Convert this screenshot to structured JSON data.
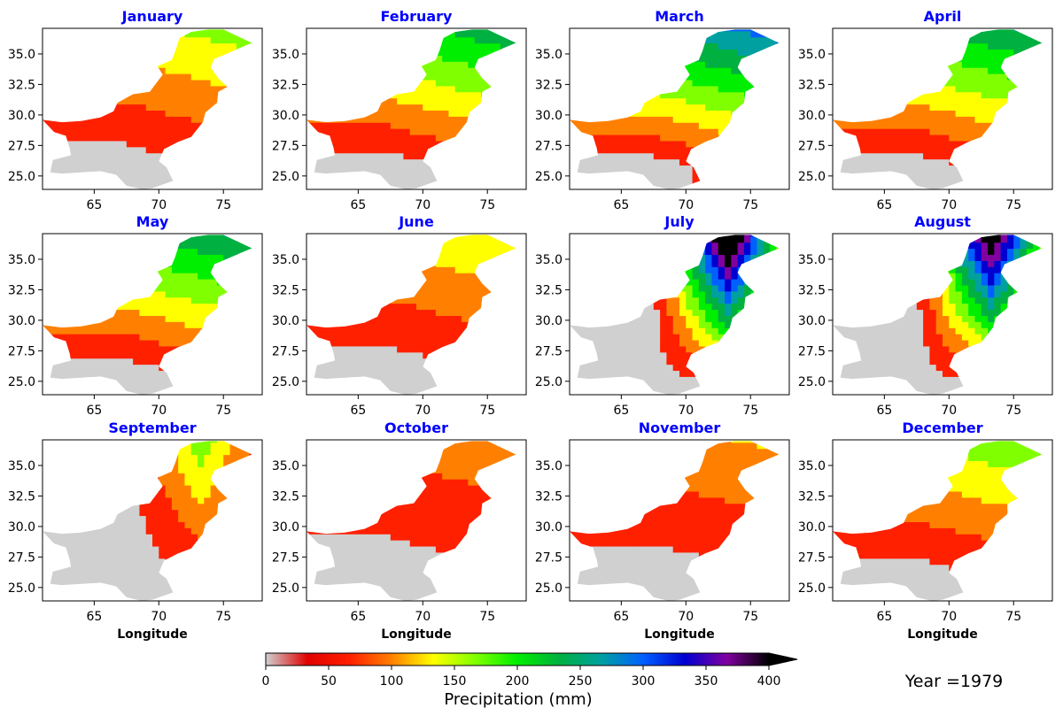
{
  "figure": {
    "year_label": "Year =1979",
    "lon_ticks": [
      "65",
      "70",
      "75"
    ],
    "lat_ticks": [
      "35.0",
      "32.5",
      "30.0",
      "27.5",
      "25.0"
    ],
    "x_label": "Longitude",
    "colorbar": {
      "label": "Precipitation (mm)",
      "ticks": [
        "0",
        "50",
        "100",
        "150",
        "200",
        "250",
        "300",
        "350",
        "400"
      ],
      "colors": [
        "#d0d0d0",
        "#e00000",
        "#ff2000",
        "#ff8000",
        "#ffff00",
        "#80ff00",
        "#00ee00",
        "#00b040",
        "#00a0a0",
        "#0060ff",
        "#0000d0",
        "#8000a0",
        "#000000"
      ]
    },
    "panels": [
      {
        "month": "January",
        "intensity": 0.18,
        "wet": "north",
        "show_xlabel": false
      },
      {
        "month": "February",
        "intensity": 0.28,
        "wet": "north",
        "show_xlabel": false
      },
      {
        "month": "March",
        "intensity": 0.36,
        "wet": "north",
        "show_xlabel": false
      },
      {
        "month": "April",
        "intensity": 0.3,
        "wet": "north",
        "show_xlabel": false
      },
      {
        "month": "May",
        "intensity": 0.3,
        "wet": "north",
        "show_xlabel": false
      },
      {
        "month": "June",
        "intensity": 0.16,
        "wet": "north",
        "show_xlabel": false
      },
      {
        "month": "July",
        "intensity": 0.62,
        "wet": "east",
        "show_xlabel": false
      },
      {
        "month": "August",
        "intensity": 0.58,
        "wet": "east",
        "show_xlabel": false
      },
      {
        "month": "September",
        "intensity": 0.2,
        "wet": "east",
        "show_xlabel": true
      },
      {
        "month": "October",
        "intensity": 0.1,
        "wet": "north",
        "show_xlabel": true
      },
      {
        "month": "November",
        "intensity": 0.12,
        "wet": "north",
        "show_xlabel": true
      },
      {
        "month": "December",
        "intensity": 0.2,
        "wet": "north",
        "show_xlabel": true
      }
    ]
  }
}
